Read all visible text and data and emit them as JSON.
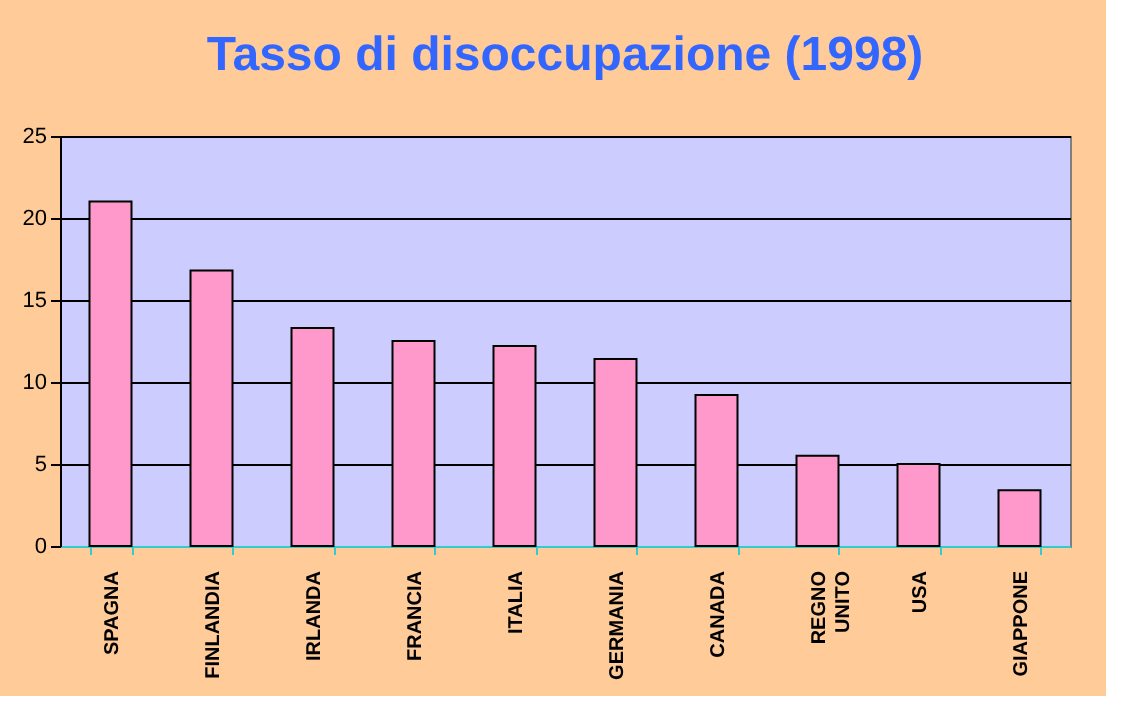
{
  "chart_data": {
    "type": "bar",
    "title": "Tasso di disoccupazione (1998)",
    "categories": [
      "SPAGNA",
      "FINLANDIA",
      "IRLANDA",
      "FRANCIA",
      "ITALIA",
      "GERMANIA",
      "CANADA",
      "REGNO UNITO",
      "USA",
      "GIAPPONE"
    ],
    "values": [
      21.0,
      16.8,
      13.3,
      12.5,
      12.2,
      11.4,
      9.2,
      5.5,
      5.0,
      3.4
    ],
    "color": "#ff99cc",
    "ylim": [
      0,
      25
    ],
    "yticks": [
      0,
      5,
      10,
      15,
      20,
      25
    ],
    "grid": "y"
  }
}
